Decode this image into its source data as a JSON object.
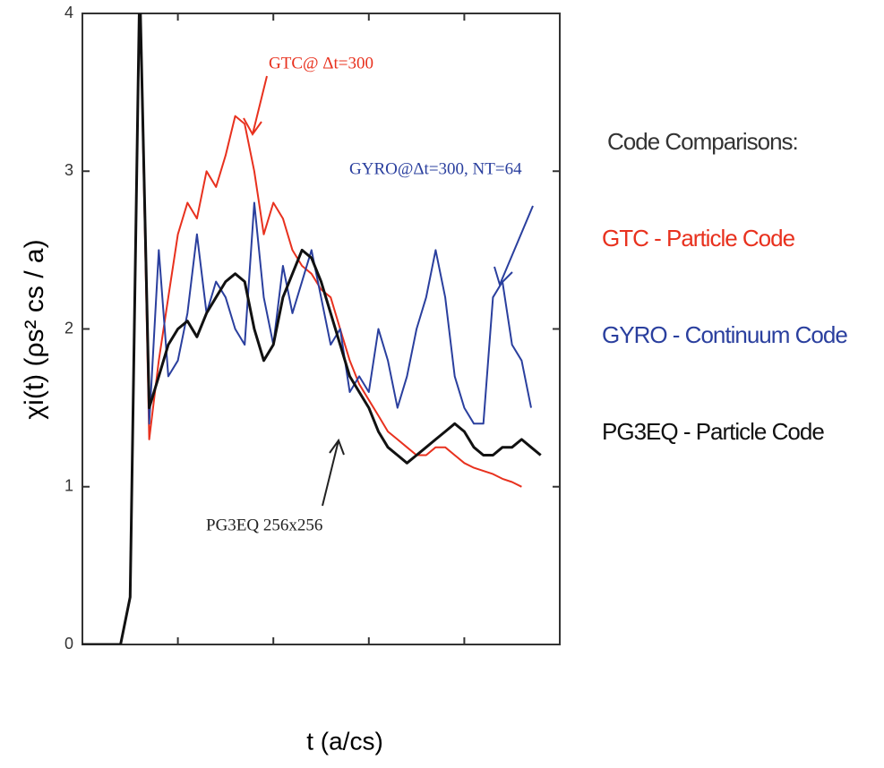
{
  "chart_data": {
    "type": "line",
    "y_label": "χi(t)  (ρs² cs / a)",
    "x_label": "t  (a/cs)",
    "legend_title": "Code Comparisons:",
    "annotations": [
      "GTC@ Δt=300",
      "GYRO@Δt=300, NT=64",
      "PG3EQ 256x256"
    ],
    "x": [
      0,
      10,
      20,
      30,
      40,
      50,
      60,
      70,
      80,
      90,
      100,
      110,
      120,
      130,
      140,
      150,
      160,
      170,
      180,
      190,
      200,
      210,
      220,
      230,
      240,
      250,
      260,
      270,
      280,
      290,
      300,
      310,
      320,
      330,
      340,
      350,
      360,
      370,
      380,
      390,
      400,
      410,
      420,
      430,
      440,
      450,
      460,
      470,
      480
    ],
    "series": [
      {
        "name": "GTC - Particle Code",
        "color": "#e8311e",
        "values": [
          0,
          0,
          0,
          0,
          0,
          0.3,
          4.2,
          1.3,
          1.8,
          2.2,
          2.6,
          2.8,
          2.7,
          3.0,
          2.9,
          3.1,
          3.35,
          3.3,
          3.0,
          2.6,
          2.8,
          2.7,
          2.5,
          2.4,
          2.35,
          2.25,
          2.2,
          2.0,
          1.8,
          1.65,
          1.55,
          1.45,
          1.35,
          1.3,
          1.25,
          1.2,
          1.2,
          1.25,
          1.25,
          1.2,
          1.15,
          1.12,
          1.1,
          1.08,
          1.05,
          1.03,
          1.0,
          null,
          null
        ]
      },
      {
        "name": "GYRO - Continuum Code",
        "color": "#2a3f9e",
        "values": [
          0,
          0,
          0,
          0,
          0,
          0.3,
          4.2,
          1.4,
          2.5,
          1.7,
          1.8,
          2.1,
          2.6,
          2.1,
          2.3,
          2.2,
          2.0,
          1.9,
          2.8,
          2.2,
          1.9,
          2.4,
          2.1,
          2.3,
          2.5,
          2.2,
          1.9,
          2.0,
          1.6,
          1.7,
          1.6,
          2.0,
          1.8,
          1.5,
          1.7,
          2.0,
          2.2,
          2.5,
          2.2,
          1.7,
          1.5,
          1.4,
          1.4,
          2.2,
          2.3,
          1.9,
          1.8,
          1.5,
          null
        ]
      },
      {
        "name": "PG3EQ - Particle Code",
        "color": "#111111",
        "values": [
          0,
          0,
          0,
          0,
          0,
          0.3,
          4.2,
          1.5,
          1.7,
          1.9,
          2.0,
          2.05,
          1.95,
          2.1,
          2.2,
          2.3,
          2.35,
          2.3,
          2.0,
          1.8,
          1.9,
          2.2,
          2.35,
          2.5,
          2.45,
          2.3,
          2.1,
          1.9,
          1.7,
          1.6,
          1.5,
          1.35,
          1.25,
          1.2,
          1.15,
          1.2,
          1.25,
          1.3,
          1.35,
          1.4,
          1.35,
          1.25,
          1.2,
          1.2,
          1.25,
          1.25,
          1.3,
          1.25,
          1.2
        ]
      }
    ],
    "xlim": [
      0,
      500
    ],
    "xticks": [
      0,
      100,
      200,
      300,
      400,
      500
    ],
    "ylim": [
      0,
      4
    ],
    "yticks": [
      0,
      1,
      2,
      3,
      4
    ]
  }
}
